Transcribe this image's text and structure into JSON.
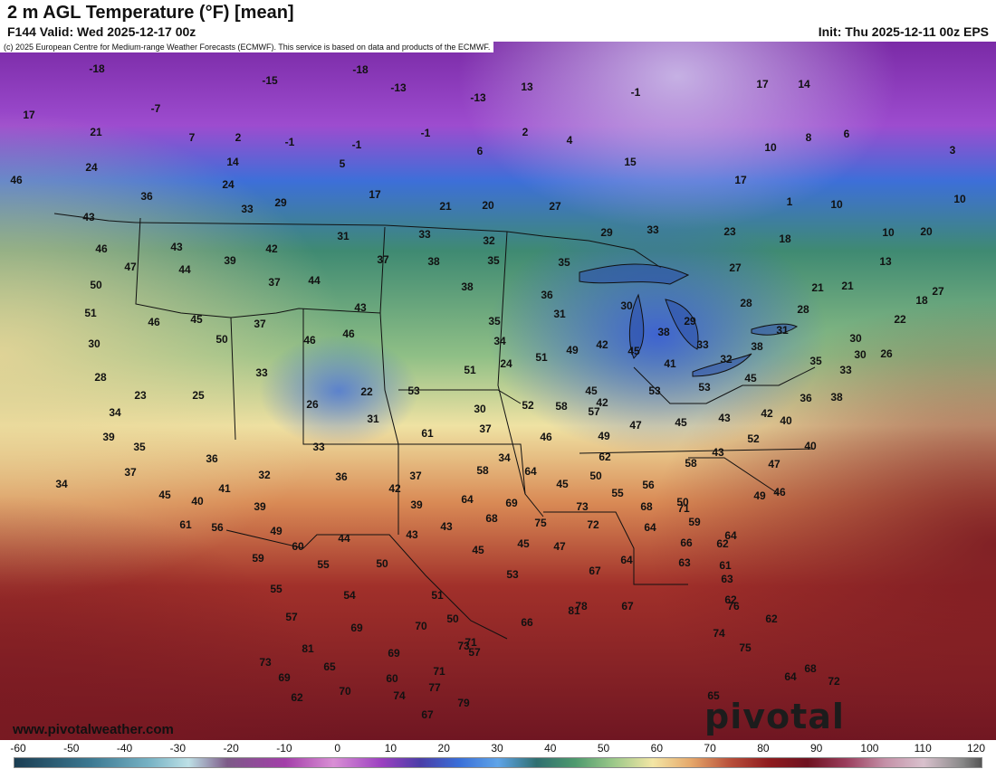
{
  "header": {
    "title": "2 m AGL Temperature (°F) [mean]",
    "valid": "F144 Valid: Wed 2025-12-17 00z",
    "init": "Init: Thu 2025-12-11 00z EPS",
    "copyright": "(c) 2025 European Centre for Medium-range Weather Forecasts (ECMWF). This service is based on data and products of the ECMWF."
  },
  "branding": {
    "site": "www.pivotalweather.com",
    "logo": "pivotal weather"
  },
  "colors": {
    "deep_purple": "#6a1d8f",
    "violet": "#a45ad6",
    "blue": "#3d6fd8",
    "teal_green": "#3f8a72",
    "pale_yellow": "#efe2a3",
    "orange": "#d98a55",
    "brick_red": "#a1302a",
    "maroon": "#6f1622"
  },
  "legend": {
    "ticks": [
      "-60",
      "-50",
      "-40",
      "-30",
      "-20",
      "-10",
      "0",
      "10",
      "20",
      "30",
      "40",
      "50",
      "60",
      "70",
      "80",
      "90",
      "100",
      "110",
      "120"
    ]
  },
  "map": {
    "units": "°F",
    "labels": [
      "-18",
      "-15",
      "-18",
      "-13",
      "-13",
      "13",
      "-1",
      "17",
      "14",
      "-7",
      "17",
      "21",
      "7",
      "2",
      "-1",
      "-1",
      "-1",
      "2",
      "4",
      "10",
      "8",
      "6",
      "24",
      "14",
      "5",
      "6",
      "15",
      "17",
      "3",
      "46",
      "36",
      "24",
      "29",
      "17",
      "21",
      "20",
      "27",
      "1",
      "10",
      "10",
      "43",
      "33",
      "31",
      "33",
      "32",
      "29",
      "33",
      "23",
      "18",
      "10",
      "20",
      "46",
      "43",
      "42",
      "37",
      "38",
      "35",
      "35",
      "27",
      "13",
      "47",
      "44",
      "39",
      "37",
      "44",
      "38",
      "36",
      "30",
      "21",
      "21",
      "50",
      "43",
      "45",
      "46",
      "37",
      "35",
      "31",
      "29",
      "28",
      "28",
      "22",
      "18",
      "51",
      "46",
      "50",
      "46",
      "34",
      "42",
      "38",
      "33",
      "32",
      "31",
      "30",
      "27",
      "30",
      "24",
      "51",
      "51",
      "49",
      "45",
      "41",
      "38",
      "35",
      "33",
      "30",
      "26",
      "28",
      "23",
      "25",
      "26",
      "22",
      "53",
      "52",
      "45",
      "42",
      "53",
      "53",
      "45",
      "36",
      "38",
      "34",
      "31",
      "30",
      "33",
      "37",
      "58",
      "57",
      "46",
      "49",
      "47",
      "45",
      "43",
      "42",
      "40",
      "39",
      "36",
      "35",
      "33",
      "34",
      "61",
      "62",
      "58",
      "43",
      "52",
      "47",
      "40",
      "37",
      "34",
      "32",
      "36",
      "37",
      "58",
      "64",
      "45",
      "50",
      "55",
      "56",
      "50",
      "49",
      "46",
      "45",
      "40",
      "41",
      "39",
      "42",
      "39",
      "64",
      "69",
      "73",
      "68",
      "71",
      "59",
      "62",
      "61",
      "56",
      "49",
      "44",
      "43",
      "43",
      "68",
      "75",
      "72",
      "64",
      "66",
      "64",
      "60",
      "55",
      "50",
      "45",
      "45",
      "47",
      "67",
      "64",
      "63",
      "61",
      "59",
      "55",
      "54",
      "51",
      "50",
      "53",
      "78",
      "81",
      "66",
      "67",
      "63",
      "62",
      "57",
      "69",
      "70",
      "73",
      "57",
      "62",
      "81",
      "65",
      "69",
      "71",
      "71",
      "60",
      "77",
      "79",
      "74",
      "64",
      "75",
      "73",
      "69",
      "70",
      "72",
      "65",
      "62",
      "74",
      "67",
      "68",
      "76",
      "79",
      "75",
      "75",
      "76"
    ]
  }
}
